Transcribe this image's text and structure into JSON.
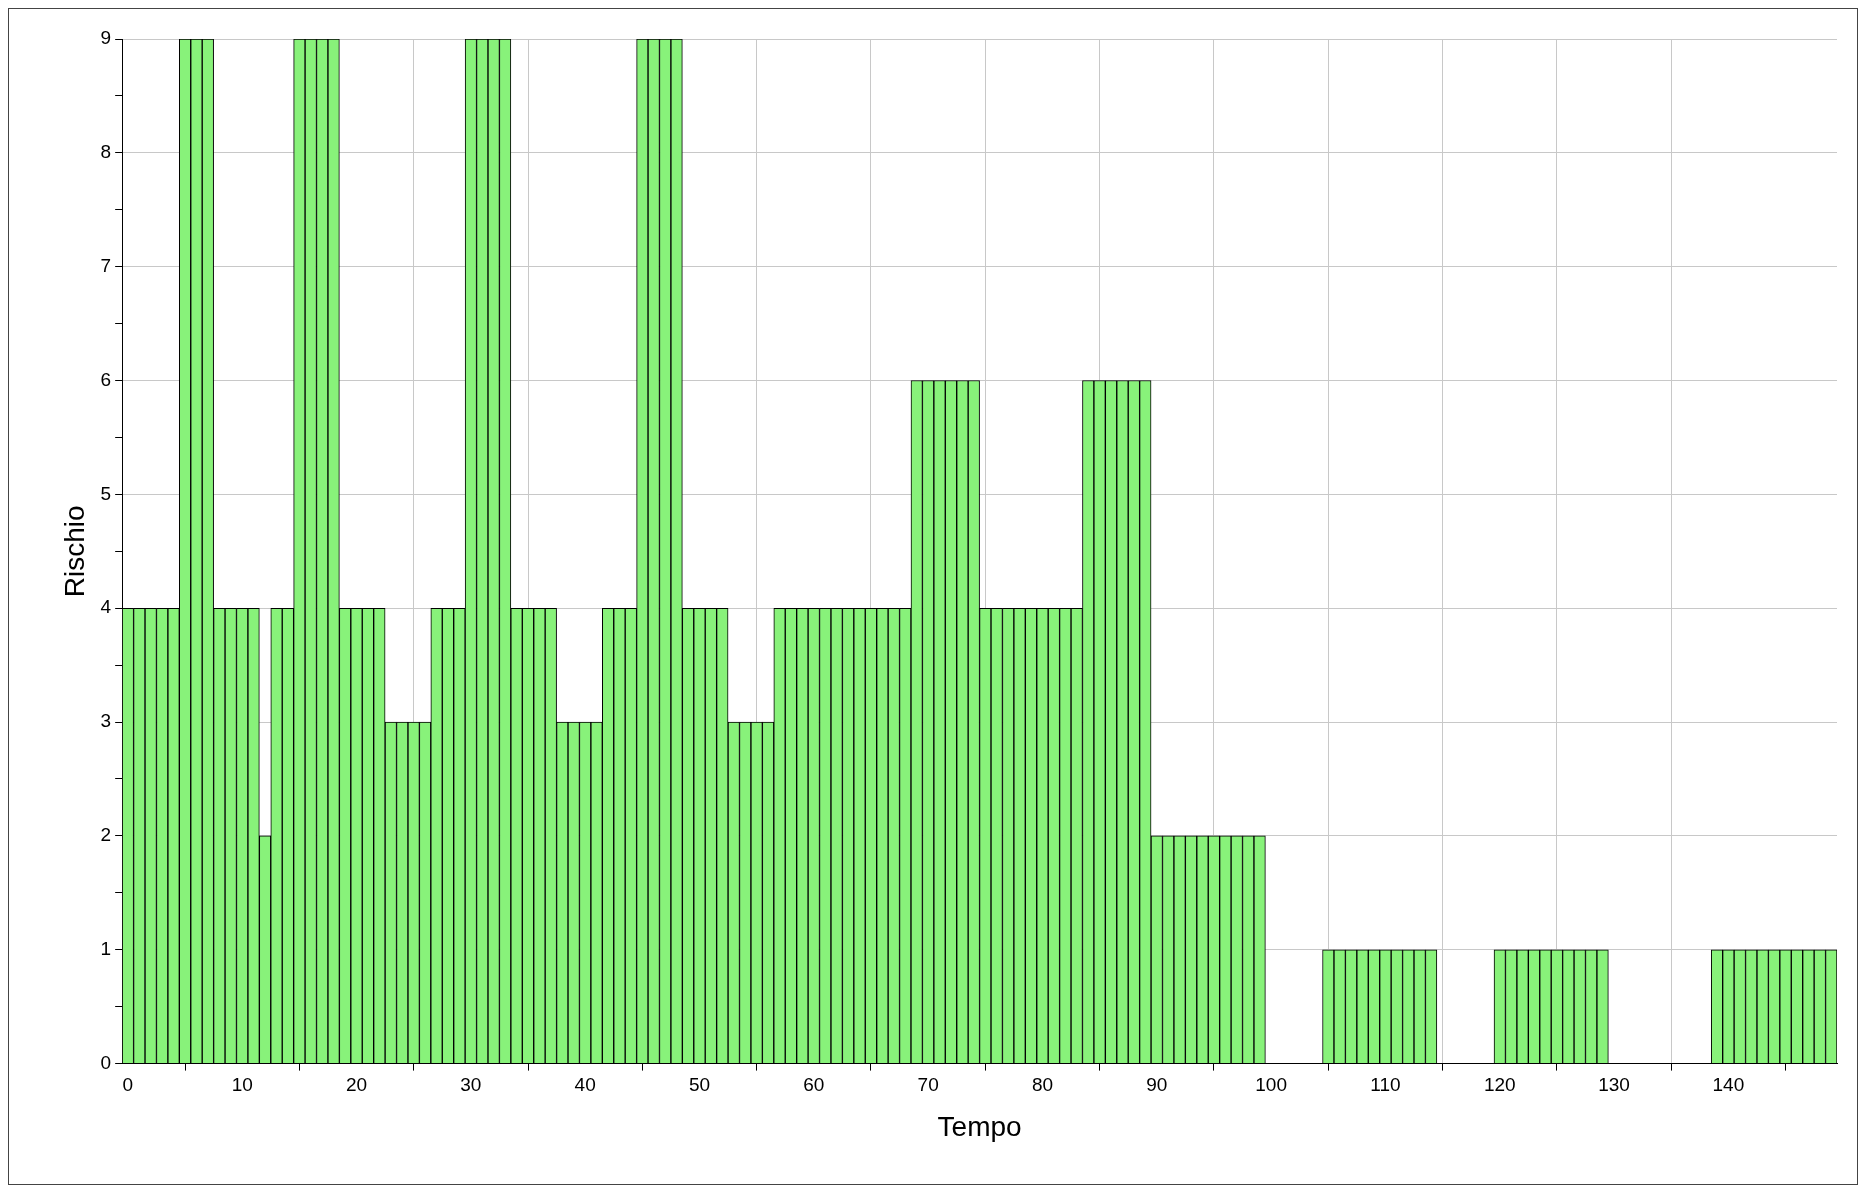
{
  "chart_data": {
    "type": "bar",
    "xlabel": "Tempo",
    "ylabel": "Rischio",
    "color": "#88f27a",
    "grid": true,
    "x": [
      0,
      1,
      2,
      3,
      4,
      5,
      6,
      7,
      8,
      9,
      10,
      11,
      12,
      13,
      14,
      15,
      16,
      17,
      18,
      19,
      20,
      21,
      22,
      23,
      24,
      25,
      26,
      27,
      28,
      29,
      30,
      31,
      32,
      33,
      34,
      35,
      36,
      37,
      38,
      39,
      40,
      41,
      42,
      43,
      44,
      45,
      46,
      47,
      48,
      49,
      50,
      51,
      52,
      53,
      54,
      55,
      56,
      57,
      58,
      59,
      60,
      61,
      62,
      63,
      64,
      65,
      66,
      67,
      68,
      69,
      70,
      71,
      72,
      73,
      74,
      75,
      76,
      77,
      78,
      79,
      80,
      81,
      82,
      83,
      84,
      85,
      86,
      87,
      88,
      89,
      90,
      91,
      92,
      93,
      94,
      95,
      96,
      97,
      98,
      99,
      100,
      101,
      102,
      103,
      104,
      105,
      106,
      107,
      108,
      109,
      110,
      111,
      112,
      113,
      114,
      115,
      116,
      117,
      118,
      119,
      120,
      121,
      122,
      123,
      124,
      125,
      126,
      127,
      128,
      129,
      130,
      131,
      132,
      133,
      134,
      135,
      136,
      137,
      138,
      139,
      140,
      141,
      142,
      143,
      144,
      145,
      146,
      147,
      148,
      149
    ],
    "values": [
      4,
      4,
      4,
      4,
      4,
      9,
      9,
      9,
      4,
      4,
      4,
      4,
      2,
      4,
      4,
      9,
      9,
      9,
      9,
      4,
      4,
      4,
      4,
      3,
      3,
      3,
      3,
      4,
      4,
      4,
      9,
      9,
      9,
      9,
      4,
      4,
      4,
      4,
      3,
      3,
      3,
      3,
      4,
      4,
      4,
      9,
      9,
      9,
      9,
      4,
      4,
      4,
      4,
      3,
      3,
      3,
      3,
      4,
      4,
      4,
      4,
      4,
      4,
      4,
      4,
      4,
      4,
      4,
      4,
      6,
      6,
      6,
      6,
      6,
      6,
      4,
      4,
      4,
      4,
      4,
      4,
      4,
      4,
      4,
      6,
      6,
      6,
      6,
      6,
      6,
      2,
      2,
      2,
      2,
      2,
      2,
      2,
      2,
      2,
      2,
      0,
      0,
      0,
      0,
      0,
      1,
      1,
      1,
      1,
      1,
      1,
      1,
      1,
      1,
      1,
      0,
      0,
      0,
      0,
      0,
      1,
      1,
      1,
      1,
      1,
      1,
      1,
      1,
      1,
      1,
      0,
      0,
      0,
      0,
      0,
      0,
      0,
      0,
      0,
      1,
      1,
      1,
      1,
      1,
      1,
      1,
      1,
      1,
      1,
      1
    ],
    "xlim": [
      -0.5,
      149.5
    ],
    "xticks": [
      0,
      10,
      20,
      30,
      40,
      50,
      60,
      70,
      80,
      90,
      100,
      110,
      120,
      130,
      140
    ],
    "ylim": [
      0,
      9
    ],
    "yticks": [
      0,
      {
        "value": 0.5,
        "label": null
      },
      1,
      {
        "value": 1.5,
        "label": null
      },
      2,
      {
        "value": 2.5,
        "label": null
      },
      3,
      {
        "value": 3.5,
        "label": null
      },
      4,
      {
        "value": 4.5,
        "label": null
      },
      5,
      {
        "value": 5.5,
        "label": null
      },
      6,
      {
        "value": 6.5,
        "label": null
      },
      7,
      {
        "value": 7.5,
        "label": null
      },
      8,
      {
        "value": 8.5,
        "label": null
      },
      9
    ]
  }
}
